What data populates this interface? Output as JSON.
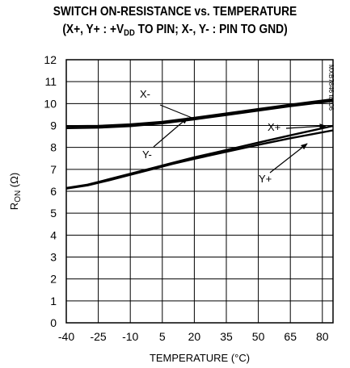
{
  "chart_data": {
    "type": "line",
    "title_line1": "SWITCH ON-RESISTANCE vs. TEMPERATURE",
    "title_line2_pre": "(X+, Y+ : +V",
    "title_line2_sub": "DD",
    "title_line2_post": " TO PIN; X-, Y- : PIN TO GND)",
    "xlabel": "TEMPERATURE (°C)",
    "ylabel_main": "R",
    "ylabel_sub": "ON",
    "ylabel_unit": " (Ω)",
    "xlim": [
      -40,
      85
    ],
    "ylim": [
      0,
      12
    ],
    "xticks": [
      -40,
      -25,
      -10,
      5,
      20,
      35,
      50,
      65,
      80
    ],
    "yticks": [
      0,
      1,
      2,
      3,
      4,
      5,
      6,
      7,
      8,
      9,
      10,
      11,
      12
    ],
    "grid": true,
    "side_note": "MXB7846 toc06",
    "series": [
      {
        "name": "X-",
        "x": [
          -40,
          -25,
          -10,
          5,
          20,
          35,
          50,
          65,
          85
        ],
        "y": [
          8.97,
          8.98,
          9.05,
          9.17,
          9.35,
          9.55,
          9.75,
          9.95,
          10.2
        ]
      },
      {
        "name": "Y-",
        "x": [
          -40,
          -25,
          -10,
          5,
          20,
          35,
          50,
          65,
          85
        ],
        "y": [
          8.88,
          8.9,
          8.97,
          9.1,
          9.28,
          9.48,
          9.68,
          9.88,
          10.12
        ]
      },
      {
        "name": "X+",
        "x": [
          -40,
          -30,
          -20,
          -10,
          0,
          10,
          20,
          35,
          50,
          65,
          85
        ],
        "y": [
          6.15,
          6.3,
          6.55,
          6.8,
          7.05,
          7.3,
          7.55,
          7.88,
          8.22,
          8.55,
          8.98
        ]
      },
      {
        "name": "Y+",
        "x": [
          -40,
          -30,
          -20,
          -10,
          0,
          10,
          20,
          35,
          50,
          65,
          85
        ],
        "y": [
          6.12,
          6.27,
          6.5,
          6.75,
          7.0,
          7.25,
          7.48,
          7.8,
          8.12,
          8.42,
          8.78
        ]
      }
    ],
    "annotations": [
      {
        "text": "X-",
        "series": "X-"
      },
      {
        "text": "Y-",
        "series": "Y-"
      },
      {
        "text": "X+",
        "series": "X+"
      },
      {
        "text": "Y+",
        "series": "Y+"
      }
    ]
  }
}
